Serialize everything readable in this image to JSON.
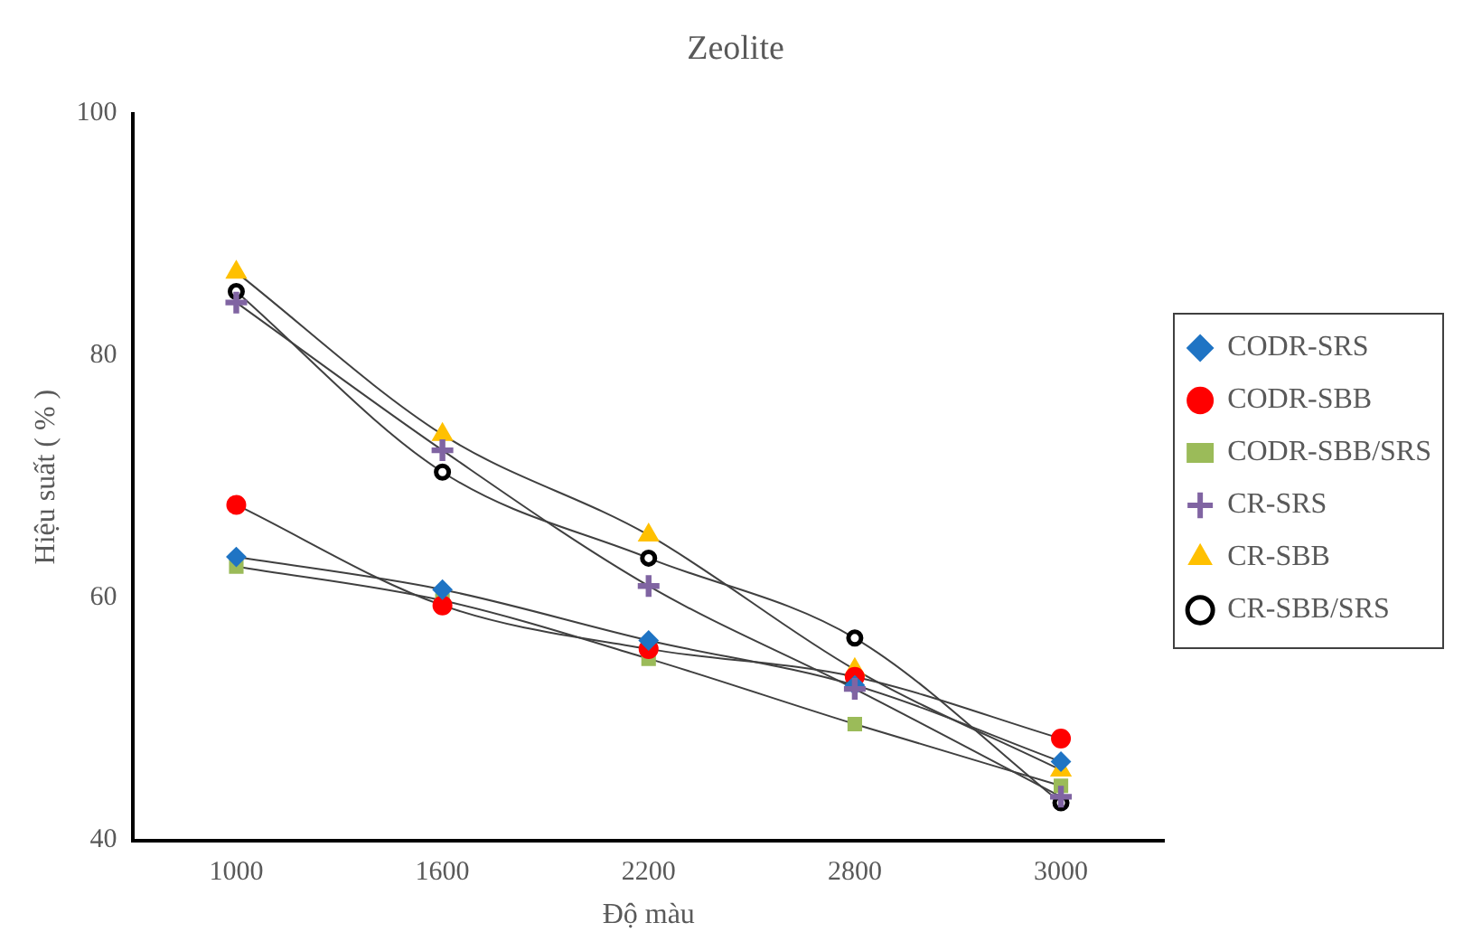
{
  "chart_data": {
    "type": "line",
    "title": "Zeolite",
    "xlabel": "Độ màu",
    "ylabel": "Hiệu suất ( % )",
    "categories": [
      "1000",
      "1600",
      "2200",
      "2800",
      "3000"
    ],
    "ylim": [
      40,
      100
    ],
    "yticks": [
      40,
      60,
      80,
      100
    ],
    "grid": false,
    "legend": "right",
    "series": [
      {
        "name": "CODR-SRS",
        "color": "#1f74c4",
        "marker": "diamond",
        "values": [
          63.4,
          60.7,
          56.5,
          52.8,
          46.5
        ]
      },
      {
        "name": "CODR-SBB",
        "color": "#ff0000",
        "marker": "circle",
        "values": [
          67.7,
          59.4,
          55.8,
          53.5,
          48.4
        ]
      },
      {
        "name": "CODR-SBB/SRS",
        "color": "#9bbb59",
        "marker": "square",
        "values": [
          62.6,
          59.8,
          55.0,
          49.6,
          44.5
        ]
      },
      {
        "name": "CR-SRS",
        "color": "#8064a2",
        "marker": "cross",
        "values": [
          84.4,
          72.2,
          61.0,
          52.5,
          43.6
        ]
      },
      {
        "name": "CR-SBB",
        "color": "#ffc000",
        "marker": "triangle",
        "values": [
          86.9,
          73.5,
          65.2,
          54.1,
          45.8
        ]
      },
      {
        "name": "CR-SBB/SRS",
        "color": "#000000",
        "marker": "hollow-circle",
        "values": [
          85.3,
          70.4,
          63.3,
          56.7,
          43.1
        ]
      }
    ]
  }
}
